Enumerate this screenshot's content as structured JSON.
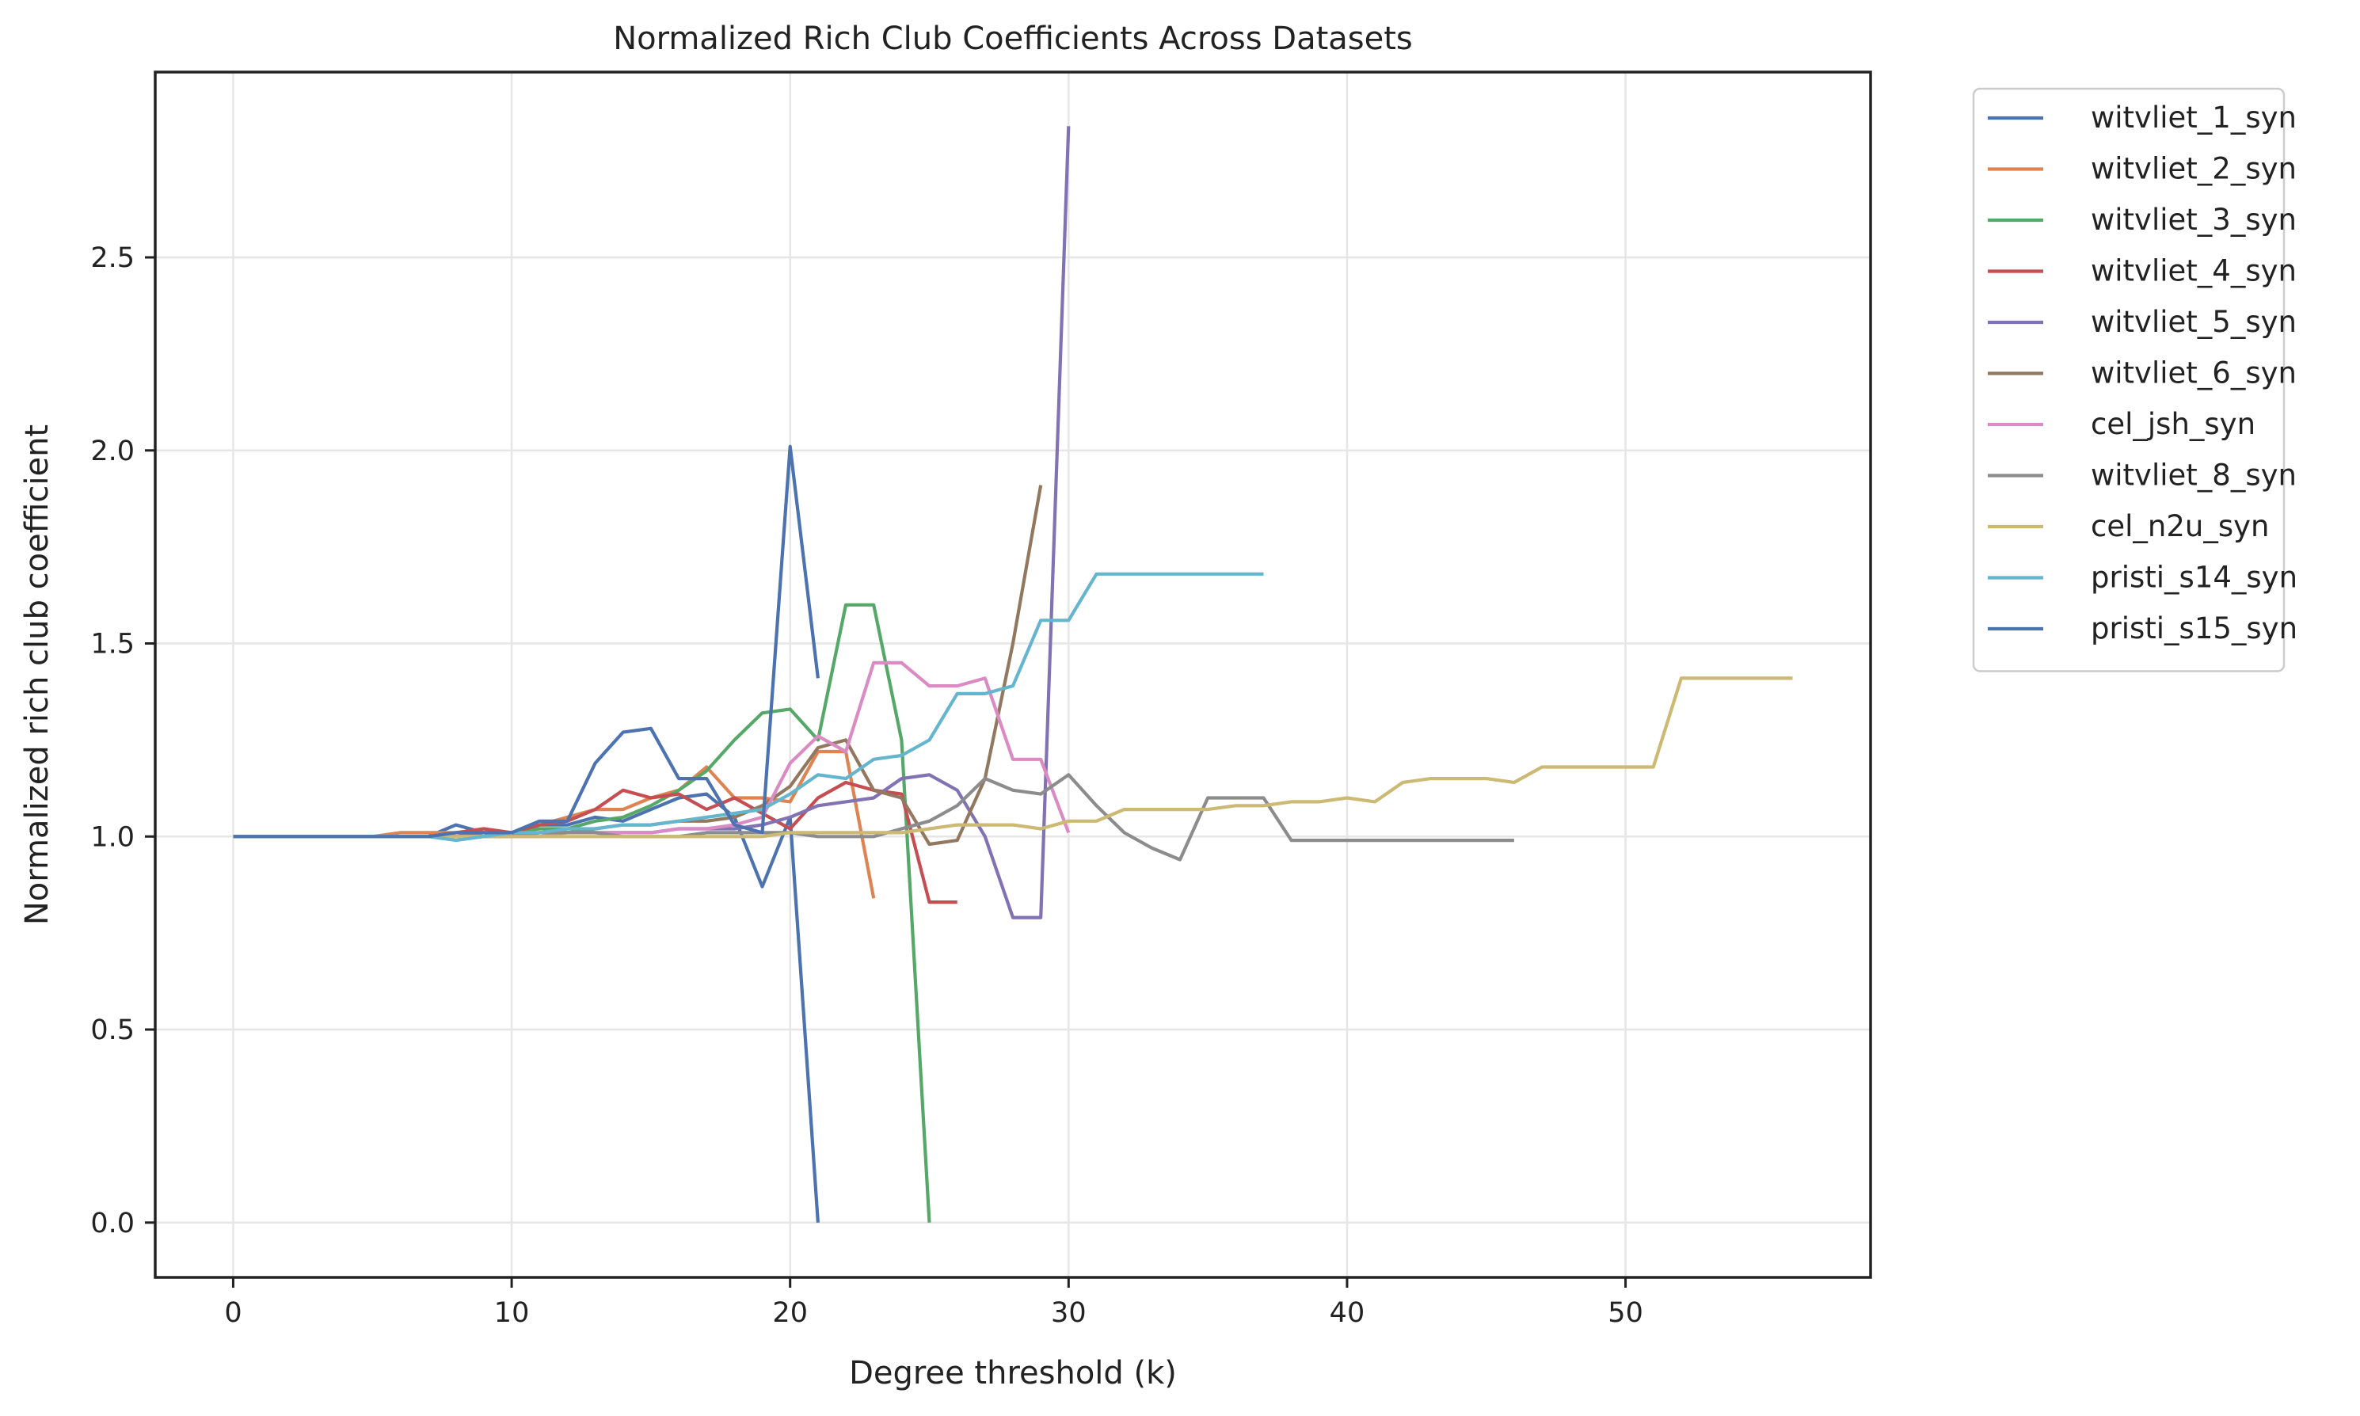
{
  "chart_data": {
    "type": "line",
    "title": "Normalized Rich Club Coefficients Across Datasets",
    "xlabel": "Degree threshold (k)",
    "ylabel": "Normalized rich club coefficient",
    "xlim": [
      -2.8,
      58.8
    ],
    "ylim": [
      -0.142,
      2.98
    ],
    "xticks": [
      0,
      10,
      20,
      30,
      40,
      50
    ],
    "xtick_labels": [
      "0",
      "10",
      "20",
      "30",
      "40",
      "50"
    ],
    "yticks": [
      0.0,
      0.5,
      1.0,
      1.5,
      2.0,
      2.5
    ],
    "ytick_labels": [
      "0.0",
      "0.5",
      "1.0",
      "1.5",
      "2.0",
      "2.5"
    ],
    "grid": true,
    "legend_placement": "outside-right",
    "series": [
      {
        "name": "witvliet_1_syn",
        "color": "#4c72b0",
        "x": [
          0,
          1,
          2,
          3,
          4,
          5,
          6,
          7,
          8,
          9,
          10,
          11,
          12,
          13,
          14,
          15,
          16,
          17,
          18,
          19,
          20,
          21
        ],
        "y": [
          1.0,
          1.0,
          1.0,
          1.0,
          1.0,
          1.0,
          1.0,
          1.0,
          1.03,
          1.01,
          1.0,
          1.03,
          1.03,
          1.05,
          1.04,
          1.07,
          1.1,
          1.11,
          1.05,
          0.87,
          1.05,
          0.0
        ]
      },
      {
        "name": "witvliet_2_syn",
        "color": "#dd8452",
        "x": [
          0,
          1,
          2,
          3,
          4,
          5,
          6,
          7,
          8,
          9,
          10,
          11,
          12,
          13,
          14,
          15,
          16,
          17,
          18,
          19,
          20,
          21,
          22,
          23
        ],
        "y": [
          1.0,
          1.0,
          1.0,
          1.0,
          1.0,
          1.0,
          1.01,
          1.01,
          1.01,
          1.01,
          1.01,
          1.03,
          1.05,
          1.07,
          1.07,
          1.1,
          1.12,
          1.18,
          1.1,
          1.1,
          1.09,
          1.22,
          1.22,
          0.84
        ]
      },
      {
        "name": "witvliet_3_syn",
        "color": "#55a868",
        "x": [
          0,
          1,
          2,
          3,
          4,
          5,
          6,
          7,
          8,
          9,
          10,
          11,
          12,
          13,
          14,
          15,
          16,
          17,
          18,
          19,
          20,
          21,
          22,
          23,
          24,
          25
        ],
        "y": [
          1.0,
          1.0,
          1.0,
          1.0,
          1.0,
          1.0,
          1.0,
          1.0,
          1.0,
          1.01,
          1.01,
          1.02,
          1.02,
          1.04,
          1.05,
          1.08,
          1.12,
          1.17,
          1.25,
          1.32,
          1.33,
          1.25,
          1.6,
          1.6,
          1.25,
          0.0
        ]
      },
      {
        "name": "witvliet_4_syn",
        "color": "#c44e52",
        "x": [
          0,
          1,
          2,
          3,
          4,
          5,
          6,
          7,
          8,
          9,
          10,
          11,
          12,
          13,
          14,
          15,
          16,
          17,
          18,
          19,
          20,
          21,
          22,
          23,
          24,
          25,
          26
        ],
        "y": [
          1.0,
          1.0,
          1.0,
          1.0,
          1.0,
          1.0,
          1.0,
          1.0,
          1.01,
          1.02,
          1.01,
          1.03,
          1.04,
          1.07,
          1.12,
          1.1,
          1.11,
          1.07,
          1.1,
          1.06,
          1.02,
          1.1,
          1.14,
          1.12,
          1.11,
          0.83,
          0.83
        ]
      },
      {
        "name": "witvliet_5_syn",
        "color": "#8172b3",
        "x": [
          0,
          1,
          2,
          3,
          4,
          5,
          6,
          7,
          8,
          9,
          10,
          11,
          12,
          13,
          14,
          15,
          16,
          17,
          18,
          19,
          20,
          21,
          22,
          23,
          24,
          25,
          26,
          27,
          28,
          29,
          30
        ],
        "y": [
          1.0,
          1.0,
          1.0,
          1.0,
          1.0,
          1.0,
          1.0,
          1.0,
          1.0,
          1.0,
          1.0,
          1.01,
          1.01,
          1.01,
          1.01,
          1.01,
          1.02,
          1.02,
          1.02,
          1.03,
          1.05,
          1.08,
          1.09,
          1.1,
          1.15,
          1.16,
          1.12,
          1.0,
          0.79,
          0.79,
          2.84
        ]
      },
      {
        "name": "witvliet_6_syn",
        "color": "#937860",
        "x": [
          0,
          1,
          2,
          3,
          4,
          5,
          6,
          7,
          8,
          9,
          10,
          11,
          12,
          13,
          14,
          15,
          16,
          17,
          18,
          19,
          20,
          21,
          22,
          23,
          24,
          25,
          26,
          27,
          28,
          29
        ],
        "y": [
          1.0,
          1.0,
          1.0,
          1.0,
          1.0,
          1.0,
          1.0,
          1.0,
          1.0,
          1.0,
          1.0,
          1.01,
          1.01,
          1.02,
          1.03,
          1.03,
          1.04,
          1.04,
          1.05,
          1.08,
          1.13,
          1.23,
          1.25,
          1.12,
          1.1,
          0.98,
          0.99,
          1.15,
          1.5,
          1.91
        ]
      },
      {
        "name": "cel_jsh_syn",
        "color": "#da8bc3",
        "x": [
          0,
          1,
          2,
          3,
          4,
          5,
          6,
          7,
          8,
          9,
          10,
          11,
          12,
          13,
          14,
          15,
          16,
          17,
          18,
          19,
          20,
          21,
          22,
          23,
          24,
          25,
          26,
          27,
          28,
          29,
          30
        ],
        "y": [
          1.0,
          1.0,
          1.0,
          1.0,
          1.0,
          1.0,
          1.0,
          1.0,
          1.0,
          1.0,
          1.0,
          1.0,
          1.01,
          1.01,
          1.01,
          1.01,
          1.02,
          1.02,
          1.03,
          1.05,
          1.19,
          1.26,
          1.22,
          1.45,
          1.45,
          1.39,
          1.39,
          1.41,
          1.2,
          1.2,
          1.01
        ]
      },
      {
        "name": "witvliet_8_syn",
        "color": "#8c8c8c",
        "x": [
          0,
          1,
          2,
          3,
          4,
          5,
          6,
          7,
          8,
          9,
          10,
          11,
          12,
          13,
          14,
          15,
          16,
          17,
          18,
          19,
          20,
          21,
          22,
          23,
          24,
          25,
          26,
          27,
          28,
          29,
          30,
          31,
          32,
          33,
          34,
          35,
          36,
          37,
          38,
          39,
          40,
          41,
          42,
          43,
          44,
          45,
          46
        ],
        "y": [
          1.0,
          1.0,
          1.0,
          1.0,
          1.0,
          1.0,
          1.0,
          1.0,
          1.0,
          1.0,
          1.0,
          1.01,
          1.01,
          1.01,
          1.0,
          1.0,
          1.0,
          1.01,
          1.01,
          1.01,
          1.01,
          1.0,
          1.0,
          1.0,
          1.02,
          1.04,
          1.08,
          1.15,
          1.12,
          1.11,
          1.16,
          1.08,
          1.01,
          0.97,
          0.94,
          1.1,
          1.1,
          1.1,
          0.99,
          0.99,
          0.99,
          0.99,
          0.99,
          0.99,
          0.99,
          0.99,
          0.99
        ]
      },
      {
        "name": "cel_n2u_syn",
        "color": "#ccb974",
        "x": [
          0,
          1,
          2,
          3,
          4,
          5,
          6,
          7,
          8,
          9,
          10,
          11,
          12,
          13,
          14,
          15,
          16,
          17,
          18,
          19,
          20,
          21,
          22,
          23,
          24,
          25,
          26,
          27,
          28,
          29,
          30,
          31,
          32,
          33,
          34,
          35,
          36,
          37,
          38,
          39,
          40,
          41,
          42,
          43,
          44,
          45,
          46,
          47,
          48,
          49,
          50,
          51,
          52,
          53,
          54,
          55,
          56
        ],
        "y": [
          1.0,
          1.0,
          1.0,
          1.0,
          1.0,
          1.0,
          1.0,
          1.0,
          1.0,
          1.0,
          1.0,
          1.0,
          1.0,
          1.0,
          1.0,
          1.0,
          1.0,
          1.0,
          1.0,
          1.0,
          1.01,
          1.01,
          1.01,
          1.01,
          1.01,
          1.02,
          1.03,
          1.03,
          1.03,
          1.02,
          1.04,
          1.04,
          1.07,
          1.07,
          1.07,
          1.07,
          1.08,
          1.08,
          1.09,
          1.09,
          1.1,
          1.09,
          1.14,
          1.15,
          1.15,
          1.15,
          1.14,
          1.18,
          1.18,
          1.18,
          1.18,
          1.18,
          1.41,
          1.41,
          1.41,
          1.41,
          1.41
        ]
      },
      {
        "name": "pristi_s14_syn",
        "color": "#64b5cd",
        "x": [
          0,
          1,
          2,
          3,
          4,
          5,
          6,
          7,
          8,
          9,
          10,
          11,
          12,
          13,
          14,
          15,
          16,
          17,
          18,
          19,
          20,
          21,
          22,
          23,
          24,
          25,
          26,
          27,
          28,
          29,
          30,
          31,
          32,
          33,
          34,
          35,
          36,
          37
        ],
        "y": [
          1.0,
          1.0,
          1.0,
          1.0,
          1.0,
          1.0,
          1.0,
          1.0,
          0.99,
          1.0,
          1.01,
          1.01,
          1.02,
          1.02,
          1.03,
          1.03,
          1.04,
          1.05,
          1.06,
          1.07,
          1.11,
          1.16,
          1.15,
          1.2,
          1.21,
          1.25,
          1.37,
          1.37,
          1.39,
          1.56,
          1.56,
          1.68,
          1.68,
          1.68,
          1.68,
          1.68,
          1.68,
          1.68
        ]
      },
      {
        "name": "pristi_s15_syn",
        "color": "#4c72b0",
        "x": [
          0,
          1,
          2,
          3,
          4,
          5,
          6,
          7,
          8,
          9,
          10,
          11,
          12,
          13,
          14,
          15,
          16,
          17,
          18,
          19,
          20,
          21
        ],
        "y": [
          1.0,
          1.0,
          1.0,
          1.0,
          1.0,
          1.0,
          1.0,
          1.0,
          1.01,
          1.01,
          1.01,
          1.04,
          1.04,
          1.19,
          1.27,
          1.28,
          1.15,
          1.15,
          1.03,
          1.01,
          2.01,
          1.41
        ]
      }
    ]
  }
}
